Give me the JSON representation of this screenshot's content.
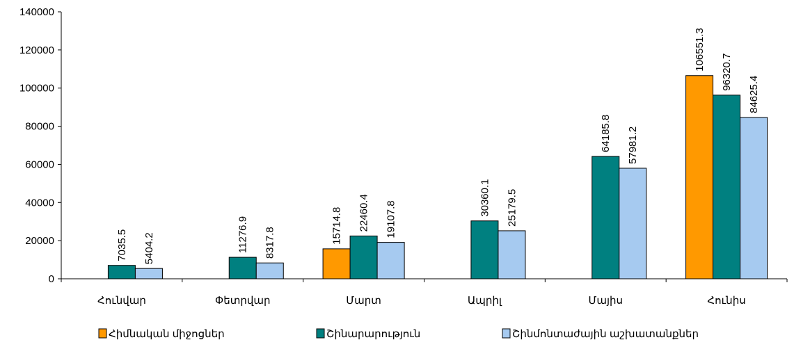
{
  "chart_data": {
    "type": "bar",
    "title": "",
    "xlabel": "",
    "ylabel": "",
    "ylim": [
      0,
      140000
    ],
    "yticks": [
      0,
      20000,
      40000,
      60000,
      80000,
      100000,
      120000,
      140000
    ],
    "grid": false,
    "legend_position": "bottom",
    "categories": [
      "Հունվար",
      "Փետրվար",
      "Մարտ",
      "Ապրիլ",
      "Մայիս",
      "Հունիս"
    ],
    "series": [
      {
        "name": "Հիմնական միջոցներ",
        "color": "#FF9900",
        "values": [
          null,
          null,
          15714.8,
          null,
          null,
          106551.3
        ],
        "labels": [
          "",
          "",
          "15714.8",
          "",
          "",
          "106551.3"
        ]
      },
      {
        "name": "Շինարարություն",
        "color": "#008080",
        "values": [
          7035.5,
          11276.9,
          22460.4,
          30360.1,
          64185.8,
          96320.7
        ],
        "labels": [
          "7035.5",
          "11276.9",
          "22460.4",
          "30360.1",
          "64185.8",
          "96320.7"
        ]
      },
      {
        "name": "Շինմոնտաժային աշխատանքներ",
        "color": "#A6CAF0",
        "values": [
          5404.2,
          8317.8,
          19107.8,
          25179.5,
          57981.2,
          84625.4
        ],
        "labels": [
          "5404.2",
          "8317.8",
          "19107.8",
          "25179.5",
          "57981.2",
          "84625.4"
        ]
      }
    ]
  }
}
